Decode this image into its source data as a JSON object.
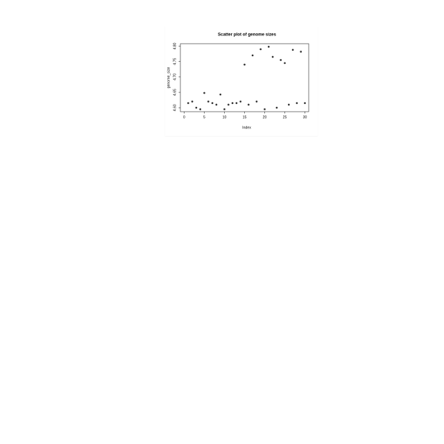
{
  "chart_data": {
    "type": "scatter",
    "title": "Scatter plot of genome sizes",
    "xlabel": "Index",
    "ylabel": "genome_size",
    "xlim": [
      0,
      30
    ],
    "ylim": [
      4.595,
      4.8
    ],
    "x_ticks": [
      "0",
      "5",
      "10",
      "15",
      "20",
      "25",
      "30"
    ],
    "y_ticks": [
      "4.60",
      "4.65",
      "4.70",
      "4.75",
      "4.80"
    ],
    "grid": false,
    "series": [
      {
        "x": [
          1,
          2,
          3,
          4,
          5,
          6,
          7,
          8,
          9,
          10,
          11,
          12,
          13,
          14,
          15,
          16,
          17,
          18,
          19,
          20,
          21,
          22,
          23,
          24,
          25,
          26,
          27,
          28,
          29,
          30
        ],
        "y": [
          4.615,
          4.62,
          4.6,
          4.595,
          4.648,
          4.62,
          4.615,
          4.61,
          4.643,
          4.595,
          4.61,
          4.615,
          4.615,
          4.62,
          4.74,
          4.61,
          4.77,
          4.62,
          4.79,
          4.595,
          4.798,
          4.765,
          4.6,
          4.755,
          4.745,
          4.61,
          4.788,
          4.615,
          4.782,
          4.615
        ]
      }
    ]
  }
}
